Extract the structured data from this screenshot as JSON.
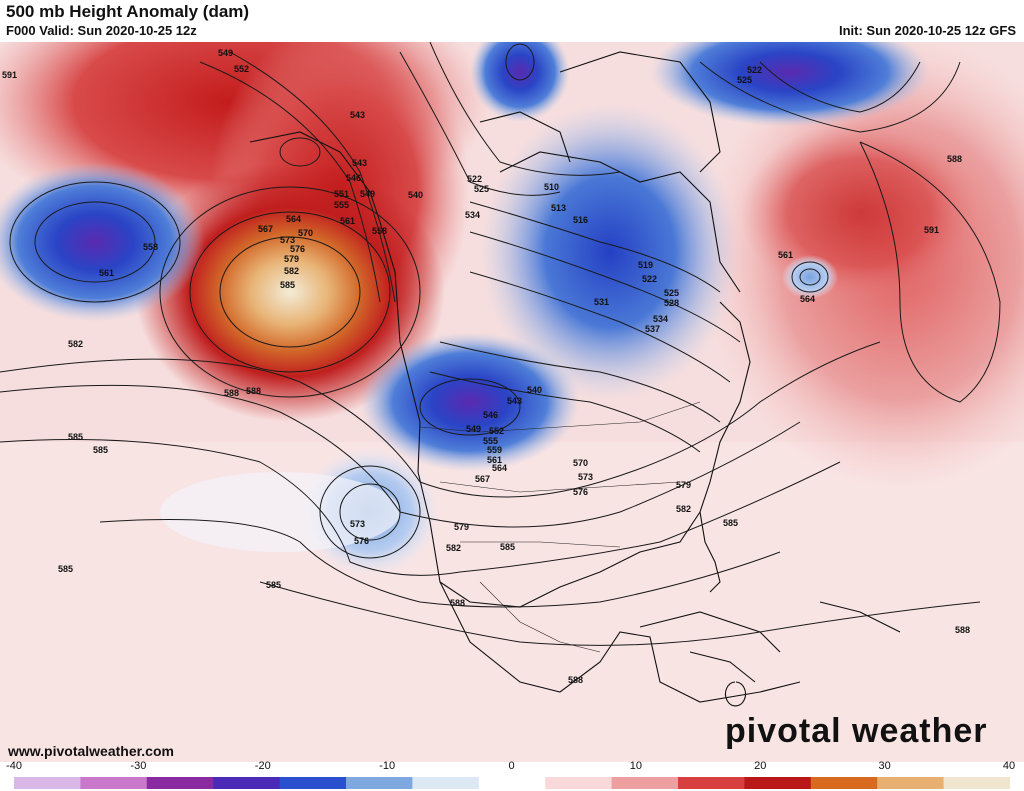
{
  "header": {
    "title": "500 mb Height Anomaly (dam)",
    "valid": "F000 Valid: Sun 2020-10-25 12z",
    "init": "Init: Sun 2020-10-25 12z GFS"
  },
  "footer": {
    "credit": "www.pivotalweather.com",
    "logo": "pivotal weather"
  },
  "colorbar": {
    "ticks": [
      "-40",
      "-30",
      "-20",
      "-10",
      "0",
      "10",
      "20",
      "30",
      "40"
    ],
    "colors": [
      "#d9b8e8",
      "#c978cc",
      "#8a2aa0",
      "#4b2ab8",
      "#2a50d0",
      "#7fa8e0",
      "#dde8f5",
      "#ffffff",
      "#f8d8d8",
      "#eea0a0",
      "#d84040",
      "#b81818",
      "#d86a20",
      "#e8b070",
      "#f0e6d0"
    ]
  },
  "contour_labels": [
    "549",
    "552",
    "543",
    "543",
    "546",
    "549",
    "551",
    "555",
    "558",
    "561",
    "564",
    "567",
    "570",
    "573",
    "576",
    "579",
    "582",
    "585",
    "588",
    "591",
    "558",
    "561",
    "582",
    "585",
    "585",
    "585",
    "585",
    "588",
    "540",
    "534",
    "522",
    "525",
    "510",
    "513",
    "516",
    "519",
    "522",
    "525",
    "528",
    "531",
    "534",
    "537",
    "540",
    "543",
    "546",
    "549",
    "552",
    "555",
    "559",
    "561",
    "564",
    "567",
    "570",
    "573",
    "576",
    "579",
    "582",
    "585",
    "588",
    "573",
    "576",
    "579",
    "582",
    "585",
    "588",
    "561",
    "564",
    "588",
    "591",
    "522",
    "525",
    "588"
  ],
  "colors": {
    "ridge_core": "#f3ecd8",
    "ridge_orange": "#de8a3a",
    "ridge_red": "#c21b1b",
    "trough_blue": "#2a46c8",
    "trough_purple": "#6b2ab0",
    "ocean_pink": "#f6c8c4",
    "light_blue": "#c8d8f0"
  }
}
